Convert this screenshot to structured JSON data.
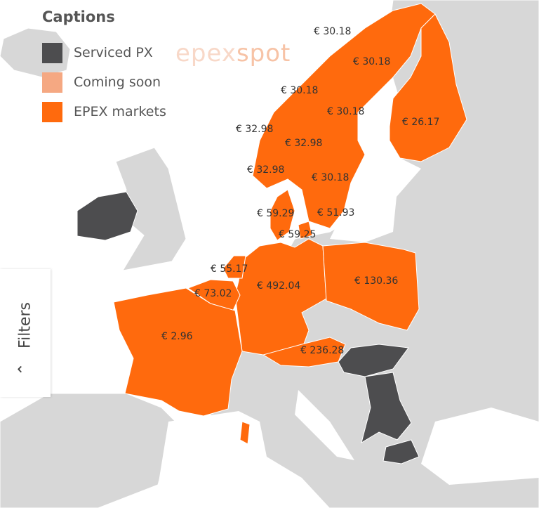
{
  "legend": {
    "title": "Captions",
    "items": [
      {
        "label": "Serviced PX",
        "color": "#4d4d4f"
      },
      {
        "label": "Coming soon",
        "color": "#f5a882"
      },
      {
        "label": "EPEX markets",
        "color": "#ff6a0d"
      }
    ]
  },
  "watermark": {
    "part1": "epex",
    "part2": "spot"
  },
  "colors": {
    "epex": "#ff6a0d",
    "serviced": "#4d4d4f",
    "land": "#d7d7d7",
    "sea": "#ffffff"
  },
  "prices": {
    "no_north": "€ 30.18",
    "se_north": "€ 30.18",
    "no_mid": "€ 30.18",
    "se_mid": "€ 30.18",
    "fi": "€ 26.17",
    "no_west": "€ 32.98",
    "no_south": "€ 32.98",
    "no_southwest": "€ 32.98",
    "se_south": "€ 30.18",
    "dk_west": "€ 59.29",
    "se_4": "€ 51.93",
    "dk_east": "€ 59.25",
    "nl": "€ 55.17",
    "be": "€ 73.02",
    "de": "€ 492.04",
    "pl": "€ 130.36",
    "fr": "€ 2.96",
    "at": "€ 236.28"
  },
  "filters": {
    "label": "Filters",
    "icon": "chevron-left-icon"
  }
}
